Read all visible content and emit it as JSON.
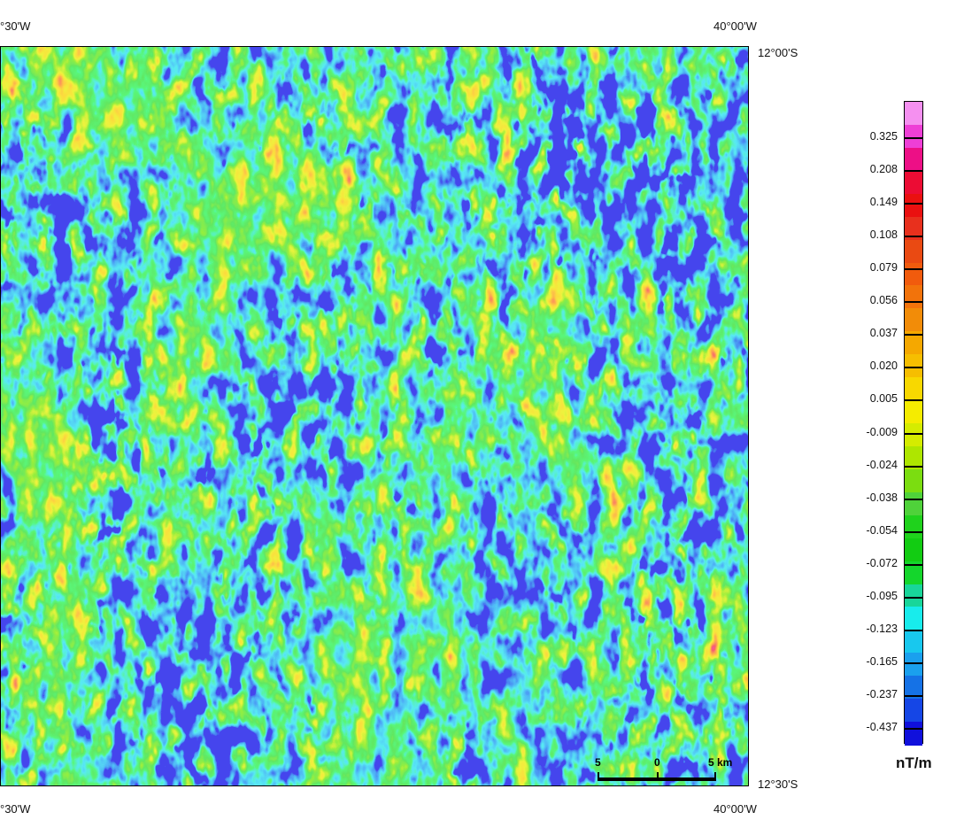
{
  "map": {
    "top_left_lon": "°30'W",
    "top_right_lon": "40°00'W",
    "bottom_left_lon": "°30'W",
    "bottom_right_lon": "40°00'W",
    "top_right_lat": "12°00'S",
    "bottom_right_lat": "12°30'S"
  },
  "scale_bar": {
    "left_label": "5",
    "mid_label": "0",
    "right_label": "5 km"
  },
  "legend": {
    "unit": "nT/m",
    "ticks": [
      "0.325",
      "0.208",
      "0.149",
      "0.108",
      "0.079",
      "0.056",
      "0.037",
      "0.020",
      "0.005",
      "-0.009",
      "-0.024",
      "-0.038",
      "-0.054",
      "-0.072",
      "-0.095",
      "-0.123",
      "-0.165",
      "-0.237",
      "-0.437"
    ],
    "colors": [
      "#f590f0",
      "#ee3fd6",
      "#ed0f86",
      "#ec0c34",
      "#ea1010",
      "#e8301d",
      "#ea4a12",
      "#f15b0d",
      "#f2730b",
      "#f28c08",
      "#f5a800",
      "#f6be00",
      "#f8d800",
      "#f5ec00",
      "#d5ec00",
      "#aee600",
      "#7bdd10",
      "#4fd23a",
      "#1fd21c",
      "#12cc12",
      "#14d62c",
      "#18d69a",
      "#18ecec",
      "#18c8ee",
      "#1aa0ee",
      "#1572e6",
      "#1546e6",
      "#1010dc"
    ]
  }
}
